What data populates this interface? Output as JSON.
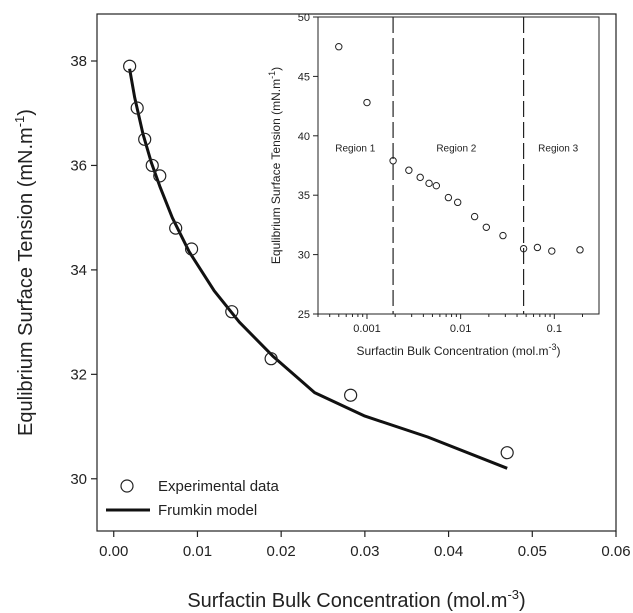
{
  "chart_data": [
    {
      "type": "scatter",
      "xlabel": "Surfactin Bulk Concentration (mol.m",
      "xlabel_sup": "-3",
      "xlabel_end": ")",
      "ylabel": "Equlibrium Surface Tension (mN.m",
      "ylabel_sup": "-1",
      "ylabel_end": ")",
      "xlim": [
        -0.002,
        0.06
      ],
      "ylim": [
        29,
        38.9
      ],
      "xticks": [
        "0.00",
        "0.01",
        "0.02",
        "0.03",
        "0.04",
        "0.05",
        "0.06"
      ],
      "xtick_values": [
        0,
        0.01,
        0.02,
        0.03,
        0.04,
        0.05,
        0.06
      ],
      "yticks": [
        "30",
        "32",
        "34",
        "36",
        "38"
      ],
      "ytick_values": [
        30,
        32,
        34,
        36,
        38
      ],
      "grid": false,
      "legend_position": "bottom-left",
      "series": [
        {
          "name": "Experimental data",
          "style": "open-circle",
          "x": [
            0.0019,
            0.0028,
            0.0037,
            0.0046,
            0.0055,
            0.0074,
            0.0093,
            0.0141,
            0.0188,
            0.0283,
            0.047
          ],
          "y": [
            37.9,
            37.1,
            36.5,
            36.0,
            35.8,
            34.8,
            34.4,
            33.2,
            32.3,
            31.6,
            30.5
          ]
        },
        {
          "name": "Frumkin model",
          "style": "line",
          "x": [
            0.0019,
            0.0025,
            0.0035,
            0.0045,
            0.0055,
            0.007,
            0.009,
            0.012,
            0.015,
            0.019,
            0.024,
            0.03,
            0.0375,
            0.047
          ],
          "y": [
            37.85,
            37.3,
            36.6,
            36.05,
            35.6,
            35.0,
            34.35,
            33.6,
            33.0,
            32.35,
            31.65,
            31.2,
            30.8,
            30.2
          ]
        }
      ]
    },
    {
      "type": "scatter",
      "xscale": "log",
      "xlabel": "Surfactin Bulk Concentration (mol.m",
      "xlabel_sup": "-3",
      "xlabel_end": ")",
      "ylabel": "Equlibrium Surface Tension (mN.m",
      "ylabel_sup": "-1",
      "ylabel_end": ")",
      "xlim": [
        0.0003,
        0.3
      ],
      "ylim": [
        25,
        50
      ],
      "xticks": [
        "0.001",
        "0.01",
        "0.1"
      ],
      "xtick_values": [
        0.001,
        0.01,
        0.1
      ],
      "yticks": [
        "25",
        "30",
        "35",
        "40",
        "45",
        "50"
      ],
      "ytick_values": [
        25,
        30,
        35,
        40,
        45,
        50
      ],
      "grid": false,
      "region_boundaries": [
        0.0019,
        0.047
      ],
      "region_labels": [
        "Region 1",
        "Region 2",
        "Region 3"
      ],
      "region_label_x": [
        0.00075,
        0.009,
        0.11
      ],
      "region_label_y": 39,
      "series": [
        {
          "name": "",
          "style": "open-circle",
          "x": [
            0.0005,
            0.001,
            0.0019,
            0.0028,
            0.0037,
            0.0046,
            0.0055,
            0.0074,
            0.0093,
            0.0141,
            0.0188,
            0.0283,
            0.047,
            0.066,
            0.094,
            0.188
          ],
          "y": [
            47.5,
            42.8,
            37.9,
            37.1,
            36.5,
            36.0,
            35.8,
            34.8,
            34.4,
            33.2,
            32.3,
            31.6,
            30.5,
            30.6,
            30.3,
            30.4
          ]
        }
      ]
    }
  ]
}
